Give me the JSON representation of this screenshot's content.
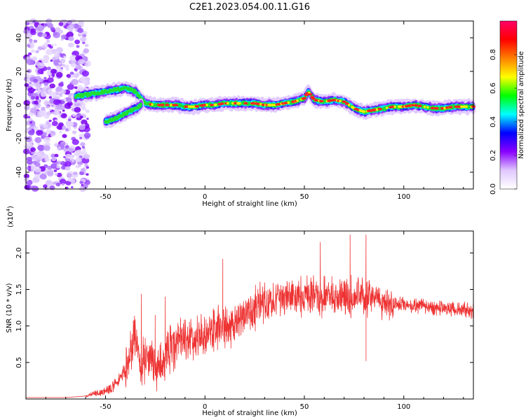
{
  "figure": {
    "title": "C2E1.2023.054.00.11.G16"
  },
  "chart_data": [
    {
      "type": "heatmap",
      "panel": "spectrogram",
      "xlabel": "Height of straight line (km)",
      "ylabel": "Frequency (Hz)",
      "xlim": [
        -90,
        135
      ],
      "ylim": [
        -50,
        50
      ],
      "xticks": [
        -50,
        0,
        50,
        100
      ],
      "yticks": [
        -40,
        -20,
        0,
        20,
        40
      ],
      "colorbar": {
        "label": "Normalized spectral amplitude",
        "range": [
          0,
          1
        ],
        "ticks": [
          0.0,
          0.2,
          0.4,
          0.6,
          0.8
        ],
        "colormap": [
          "#ffffff",
          "#e0c8ff",
          "#8a00ff",
          "#0000ff",
          "#00ffff",
          "#00ff00",
          "#ffff00",
          "#ff8000",
          "#ff0000",
          "#ff0066"
        ]
      },
      "ridge_frequency": {
        "x": [
          -65,
          -60,
          -55,
          -50,
          -45,
          -40,
          -35,
          -30,
          -25,
          -20,
          -15,
          -10,
          -5,
          0,
          5,
          10,
          15,
          20,
          25,
          30,
          35,
          40,
          45,
          50,
          52,
          55,
          60,
          65,
          70,
          75,
          80,
          85,
          90,
          95,
          100,
          105,
          110,
          115,
          120,
          125,
          130,
          135
        ],
        "y": [
          5,
          6,
          7,
          8,
          9,
          10,
          8,
          1,
          0,
          0,
          0,
          -1,
          -1,
          0,
          0,
          1,
          1,
          1,
          1,
          0,
          0,
          1,
          2,
          4,
          8,
          3,
          2,
          3,
          2,
          -2,
          -4,
          -3,
          -2,
          -1,
          -1,
          0,
          -1,
          -2,
          -2,
          -1,
          -1,
          -1
        ]
      },
      "branch_frequency": {
        "x": [
          -50,
          -45,
          -40,
          -35,
          -32
        ],
        "y": [
          -10,
          -8,
          -5,
          -2,
          0
        ]
      }
    },
    {
      "type": "line",
      "panel": "snr",
      "xlabel": "Height of straight line (km)",
      "ylabel": "SNR (10 * v/v)",
      "scale_label": "(x10",
      "scale_exp": "4",
      "scale_close": ")",
      "xlim": [
        -90,
        135
      ],
      "ylim": [
        0,
        2.3
      ],
      "xticks": [
        -50,
        0,
        50,
        100
      ],
      "yticks": [
        0.5,
        1.0,
        1.5,
        2.0
      ],
      "ytick_labels": [
        "0.5",
        "1.0",
        "1.5",
        "2.0"
      ],
      "color": "#ee3333",
      "series": [
        {
          "x": [
            -90,
            -70,
            -60,
            -55,
            -50,
            -45,
            -40,
            -37,
            -35,
            -33,
            -30,
            -27,
            -25,
            -22,
            -20,
            -18,
            -15,
            -12,
            -10,
            -5,
            0,
            5,
            8,
            10,
            12,
            15,
            20,
            25,
            30,
            35,
            40,
            45,
            50,
            55,
            60,
            65,
            70,
            75,
            80,
            85,
            90,
            95,
            100,
            105,
            110,
            115,
            120,
            125,
            130,
            135
          ],
          "y": [
            0.02,
            0.02,
            0.04,
            0.08,
            0.1,
            0.2,
            0.4,
            0.6,
            0.9,
            0.5,
            0.5,
            0.6,
            0.4,
            0.5,
            0.6,
            0.7,
            0.75,
            0.85,
            0.8,
            0.85,
            0.9,
            0.95,
            1.0,
            1.0,
            0.95,
            1.05,
            1.15,
            1.25,
            1.3,
            1.35,
            1.4,
            1.4,
            1.4,
            1.4,
            1.4,
            1.4,
            1.4,
            1.4,
            1.4,
            1.38,
            1.35,
            1.3,
            1.3,
            1.28,
            1.28,
            1.25,
            1.25,
            1.22,
            1.22,
            1.2
          ]
        }
      ],
      "spikes": [
        {
          "x": -32,
          "y": 1.44
        },
        {
          "x": -25,
          "y": 1.15
        },
        {
          "x": -20,
          "y": 1.4
        },
        {
          "x": 9,
          "y": 1.92
        },
        {
          "x": 58,
          "y": 2.15
        },
        {
          "x": 73,
          "y": 2.25
        },
        {
          "x": 81,
          "y": 2.25
        },
        {
          "x": 81,
          "y": 0.52
        }
      ]
    }
  ]
}
